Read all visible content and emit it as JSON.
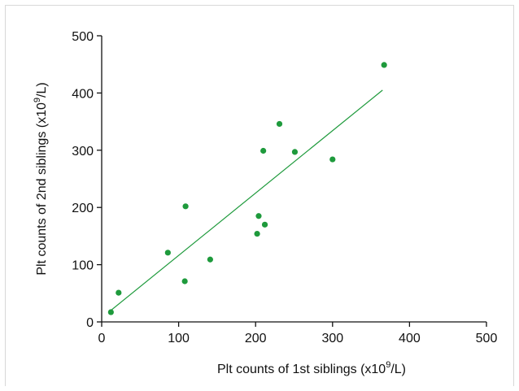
{
  "chart_data": {
    "type": "scatter",
    "xlabel": {
      "main": "Plt counts of 1st siblings  (x10",
      "sup": "9",
      "end": "/L)"
    },
    "ylabel": {
      "main": "Plt counts of 2nd siblings (x10",
      "sup": "9",
      "end": "/L)"
    },
    "xlim": [
      0,
      500
    ],
    "ylim": [
      0,
      500
    ],
    "xticks": [
      "0",
      "100",
      "200",
      "300",
      "400",
      "500"
    ],
    "yticks": [
      "0",
      "100",
      "200",
      "300",
      "400",
      "500"
    ],
    "grid": false,
    "color": "#1e9a3c",
    "points": [
      {
        "x": 12,
        "y": 17
      },
      {
        "x": 22,
        "y": 51
      },
      {
        "x": 86,
        "y": 121
      },
      {
        "x": 108,
        "y": 71
      },
      {
        "x": 109,
        "y": 202
      },
      {
        "x": 141,
        "y": 109
      },
      {
        "x": 202,
        "y": 154
      },
      {
        "x": 204,
        "y": 185
      },
      {
        "x": 210,
        "y": 299
      },
      {
        "x": 212,
        "y": 170
      },
      {
        "x": 231,
        "y": 346
      },
      {
        "x": 251,
        "y": 297
      },
      {
        "x": 300,
        "y": 284
      },
      {
        "x": 367,
        "y": 449
      }
    ],
    "fit_line": {
      "x": [
        10,
        365
      ],
      "y": [
        18,
        405
      ]
    }
  }
}
